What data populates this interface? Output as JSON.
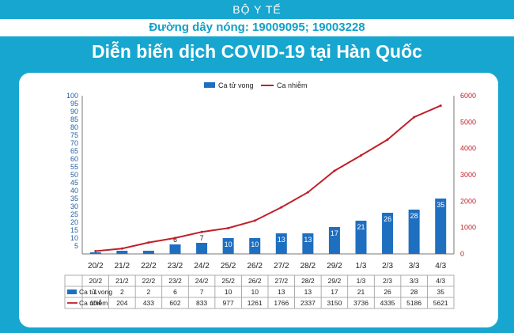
{
  "header": {
    "org": "BỘ Y TẾ",
    "hotline": "Đường dây nóng: 19009095; 19003228",
    "title": "Diễn biến  dịch COVID-19 tại Hàn Quốc"
  },
  "colors": {
    "background": "#17a6cf",
    "bar": "#1f6fc0",
    "line": "#c0202a",
    "left_axis": "#1f5fa8",
    "right_axis": "#c0202a"
  },
  "chart_data": {
    "type": "bar+line",
    "categories": [
      "20/2",
      "21/2",
      "22/2",
      "23/2",
      "24/2",
      "25/2",
      "26/2",
      "27/2",
      "28/2",
      "29/2",
      "1/3",
      "2/3",
      "3/3",
      "4/3"
    ],
    "table_header": [
      "20/2",
      "21/2",
      "22/2",
      "23/2",
      "24/2",
      "25/2",
      "26/2",
      "27/2",
      "28/2",
      "29/2",
      "1/3",
      "2/3",
      "3/3",
      "4/3"
    ],
    "series": [
      {
        "name": "Ca tử vong",
        "type": "bar",
        "axis": "left",
        "values": [
          1,
          2,
          2,
          6,
          7,
          10,
          10,
          13,
          13,
          17,
          21,
          26,
          28,
          35
        ]
      },
      {
        "name": "Ca nhiễm",
        "type": "line",
        "axis": "right",
        "values": [
          104,
          204,
          433,
          602,
          833,
          977,
          1261,
          1766,
          2337,
          3150,
          3736,
          4335,
          5186,
          5621
        ]
      }
    ],
    "bar_labels": [
      "",
      "",
      "",
      "6",
      "7",
      "10",
      "10",
      "13",
      "13",
      "17",
      "21",
      "26",
      "28",
      "35"
    ],
    "left_axis": {
      "ylim": [
        0,
        100
      ],
      "ticks": [
        5,
        10,
        15,
        20,
        25,
        30,
        35,
        40,
        45,
        50,
        55,
        60,
        65,
        70,
        75,
        80,
        85,
        90,
        95,
        100
      ]
    },
    "right_axis": {
      "ylim": [
        0,
        6000
      ],
      "ticks": [
        0,
        1000,
        2000,
        3000,
        4000,
        5000,
        6000
      ]
    },
    "legend_position": "top-center",
    "grid": false
  }
}
